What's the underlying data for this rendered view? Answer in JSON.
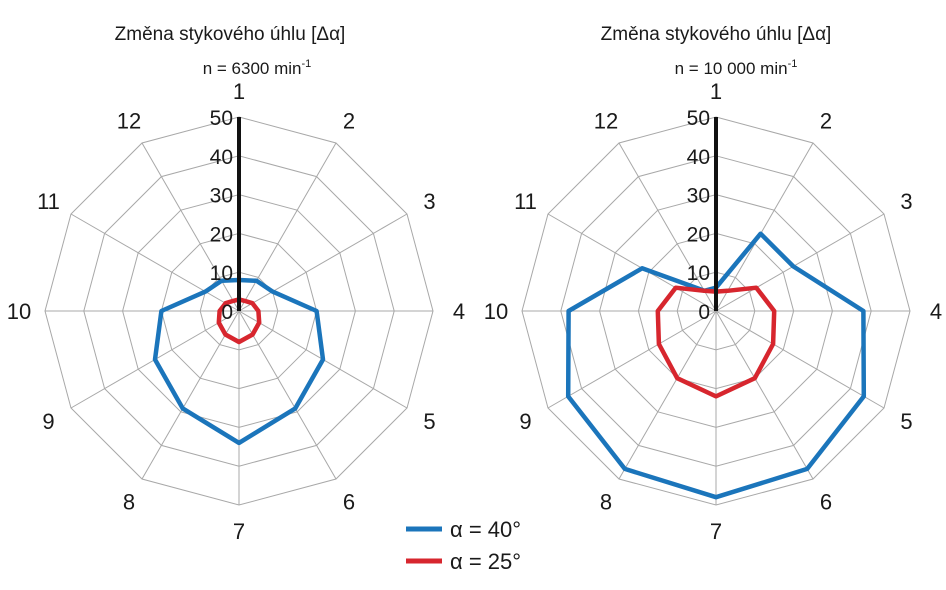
{
  "chart_data": [
    {
      "type": "radar",
      "title": "Změna stykového úhlu [Δα]",
      "subtitle_main": "n = 6300 min",
      "subtitle_sup": "-1",
      "categories": [
        "1",
        "2",
        "3",
        "4",
        "5",
        "6",
        "7",
        "8",
        "9",
        "10",
        "11",
        "12"
      ],
      "rlim": [
        0,
        50
      ],
      "ticks": [
        "0",
        "10",
        "20",
        "30",
        "40",
        "50"
      ],
      "grid": true,
      "series": [
        {
          "name": "α = 40°",
          "color": "#1b75bb",
          "values": [
            8,
            9,
            10,
            20,
            25,
            29,
            34,
            29,
            25,
            20,
            10,
            9
          ]
        },
        {
          "name": "α = 25°",
          "color": "#d7262e",
          "values": [
            3,
            3,
            4,
            5,
            6,
            7,
            8,
            7,
            6,
            5,
            4,
            3
          ]
        }
      ]
    },
    {
      "type": "radar",
      "title": "Změna stykového úhlu [Δα]",
      "subtitle_main": "n = 10 000 min",
      "subtitle_sup": "-1",
      "categories": [
        "1",
        "2",
        "3",
        "4",
        "5",
        "6",
        "7",
        "8",
        "9",
        "10",
        "11",
        "12"
      ],
      "rlim": [
        0,
        50
      ],
      "ticks": [
        "0",
        "10",
        "20",
        "30",
        "40",
        "50"
      ],
      "grid": true,
      "series": [
        {
          "name": "α = 40°",
          "color": "#1b75bb",
          "values": [
            6,
            23,
            23,
            38,
            44,
            47,
            48,
            47,
            44,
            38,
            22,
            6
          ]
        },
        {
          "name": "α = 25°",
          "color": "#d7262e",
          "values": [
            5,
            6,
            12,
            15,
            17,
            20,
            22,
            20,
            17,
            15,
            12,
            6
          ]
        }
      ]
    }
  ],
  "legend": {
    "placement": "bottom-center",
    "items": [
      {
        "label": "α = 40°",
        "color": "#1b75bb"
      },
      {
        "label": "α = 25°",
        "color": "#d7262e"
      }
    ]
  }
}
